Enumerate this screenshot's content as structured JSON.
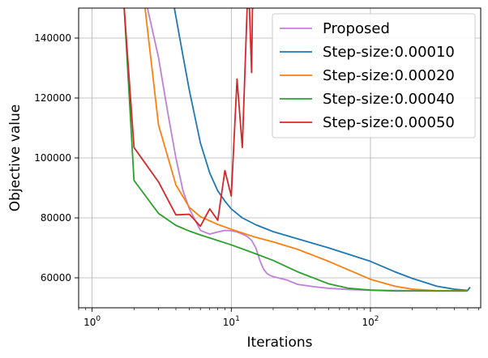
{
  "chart_data": {
    "type": "line",
    "title": "",
    "xlabel": "Iterations",
    "ylabel": "Objective value",
    "xscale": "log",
    "xlim": [
      0.8,
      620
    ],
    "ylim": [
      50000,
      150000
    ],
    "x_ticks": [
      {
        "value": 1,
        "base": "10",
        "exp": "0"
      },
      {
        "value": 10,
        "base": "10",
        "exp": "1"
      },
      {
        "value": 100,
        "base": "10",
        "exp": "2"
      }
    ],
    "y_ticks": [
      {
        "value": 60000,
        "label": "60000"
      },
      {
        "value": 80000,
        "label": "80000"
      },
      {
        "value": 100000,
        "label": "100000"
      },
      {
        "value": 120000,
        "label": "120000"
      },
      {
        "value": 140000,
        "label": "140000"
      }
    ],
    "grid": true,
    "legend_position": "top-right",
    "series": [
      {
        "name": "Proposed",
        "color": "#c27fd8",
        "x": [
          2.5,
          3,
          3.5,
          4,
          4.5,
          5,
          6,
          7,
          8,
          9,
          10,
          11,
          12,
          13,
          14,
          15,
          16,
          17,
          18,
          19,
          20,
          25,
          30,
          40,
          50,
          70,
          100,
          200,
          300,
          500
        ],
        "y": [
          150000,
          133500,
          115000,
          100000,
          89000,
          83000,
          75800,
          74600,
          75300,
          75800,
          75700,
          75300,
          74600,
          73800,
          72500,
          70000,
          66000,
          63000,
          61500,
          60800,
          60400,
          59300,
          57800,
          57000,
          56500,
          56100,
          55900,
          55700,
          55600,
          55600
        ]
      },
      {
        "name": "Step-size:0.00010",
        "color": "#1f77b4",
        "x": [
          3.9,
          4.5,
          5,
          6,
          7,
          8,
          9,
          10,
          12,
          15,
          20,
          30,
          50,
          100,
          150,
          200,
          300,
          400,
          500,
          520
        ],
        "y": [
          150000,
          134000,
          122500,
          105000,
          95000,
          89000,
          85600,
          83000,
          80000,
          77700,
          75400,
          73000,
          70000,
          65500,
          62000,
          59800,
          57200,
          56200,
          55800,
          56900
        ]
      },
      {
        "name": "Step-size:0.00020",
        "color": "#ff7f0e",
        "x": [
          2.4,
          3,
          4,
          5,
          6,
          7,
          8,
          10,
          15,
          20,
          30,
          50,
          100,
          150,
          200,
          300,
          500
        ],
        "y": [
          150000,
          111000,
          91000,
          83500,
          80400,
          79000,
          77800,
          76200,
          73500,
          72000,
          69500,
          65500,
          59500,
          57200,
          56200,
          55700,
          55700
        ]
      },
      {
        "name": "Step-size:0.00040",
        "color": "#2ca02c",
        "x": [
          1.7,
          2,
          3,
          4,
          5,
          6,
          7,
          10,
          15,
          20,
          30,
          50,
          70,
          100,
          150,
          200,
          300,
          500
        ],
        "y": [
          150000,
          92500,
          81500,
          77500,
          75600,
          74300,
          73300,
          71000,
          68000,
          65800,
          62000,
          58000,
          56500,
          55900,
          55600,
          55600,
          55600,
          55600
        ]
      },
      {
        "name": "Step-size:0.00050",
        "color": "#d62728",
        "x": [
          1.7,
          2,
          3,
          4,
          5,
          6,
          7,
          8,
          9,
          10,
          11,
          12,
          13,
          13.5,
          14,
          14.2,
          14.5
        ],
        "y": [
          150000,
          103500,
          92000,
          81000,
          81200,
          77200,
          83000,
          79200,
          95800,
          87300,
          126300,
          103500,
          150000,
          150000,
          128500,
          150000,
          150000
        ]
      }
    ]
  }
}
